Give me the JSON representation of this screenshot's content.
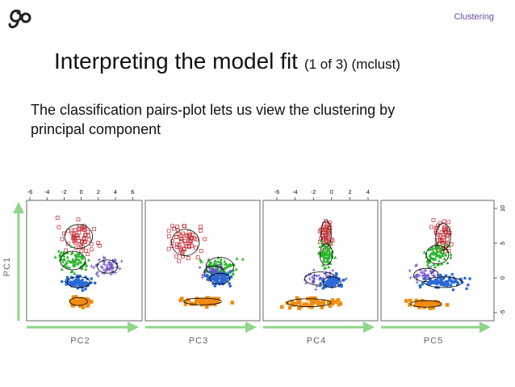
{
  "header": {
    "section": "Clustering"
  },
  "title": {
    "main": "Interpreting the model fit",
    "suffix": "(1 of 3) (mclust)"
  },
  "body": {
    "lines": [
      "The classification pairs-plot lets us view the clustering by",
      "principal component"
    ]
  },
  "figure": {
    "y_label": "PC1",
    "panels": [
      {
        "x_label": "PC2"
      },
      {
        "x_label": "PC3"
      },
      {
        "x_label": "PC4"
      },
      {
        "x_label": "PC5"
      }
    ],
    "top_axis_panel1": [
      -6,
      -4,
      -2,
      0,
      2,
      4,
      6
    ],
    "top_axis_panel3": [
      -6,
      -4,
      -2,
      0,
      2,
      4
    ],
    "right_axis_panel4": [
      10,
      5,
      0,
      -5
    ]
  }
}
